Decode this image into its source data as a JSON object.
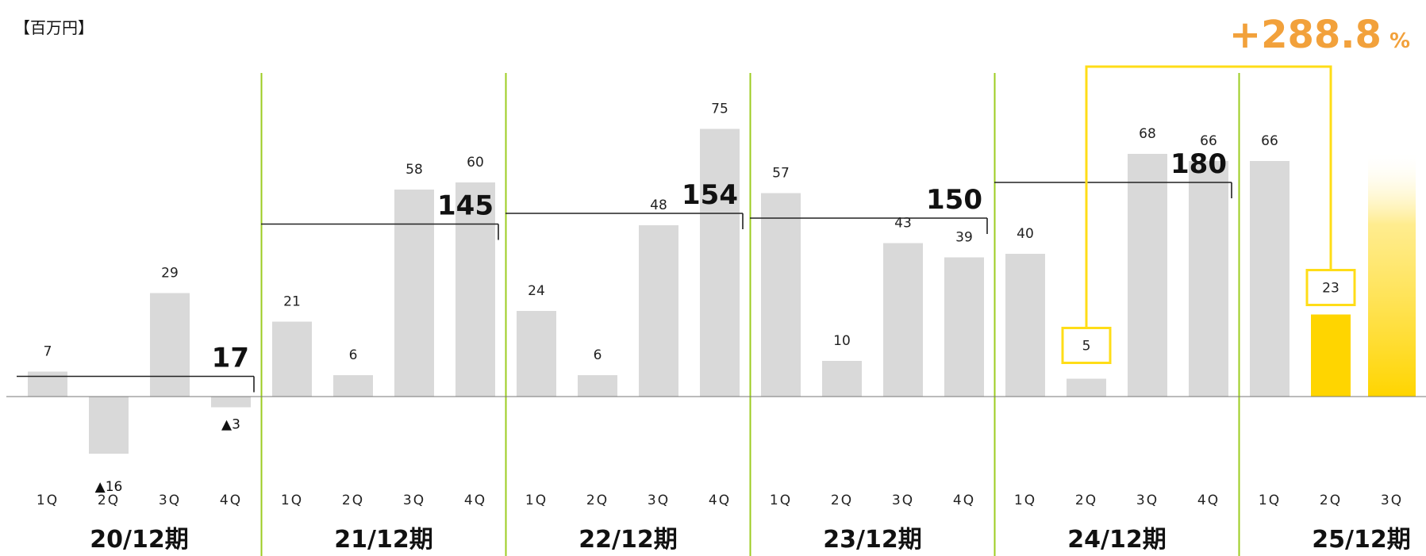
{
  "unit_label": "【百万円】",
  "chart_data": {
    "type": "bar",
    "unit": "百万円",
    "periods": [
      {
        "label": "20/12期",
        "annual_total": "17",
        "quarters": [
          {
            "q": "1Q",
            "value": 7,
            "label": "7"
          },
          {
            "q": "2Q",
            "value": -16,
            "label": "▲16"
          },
          {
            "q": "3Q",
            "value": 29,
            "label": "29"
          },
          {
            "q": "4Q",
            "value": -3,
            "label": "▲3"
          }
        ]
      },
      {
        "label": "21/12期",
        "annual_total": "145",
        "quarters": [
          {
            "q": "1Q",
            "value": 21,
            "label": "21"
          },
          {
            "q": "2Q",
            "value": 6,
            "label": "6"
          },
          {
            "q": "3Q",
            "value": 58,
            "label": "58"
          },
          {
            "q": "4Q",
            "value": 60,
            "label": "60"
          }
        ]
      },
      {
        "label": "22/12期",
        "annual_total": "154",
        "quarters": [
          {
            "q": "1Q",
            "value": 24,
            "label": "24"
          },
          {
            "q": "2Q",
            "value": 6,
            "label": "6"
          },
          {
            "q": "3Q",
            "value": 48,
            "label": "48"
          },
          {
            "q": "4Q",
            "value": 75,
            "label": "75"
          }
        ]
      },
      {
        "label": "23/12期",
        "annual_total": "150",
        "quarters": [
          {
            "q": "1Q",
            "value": 57,
            "label": "57"
          },
          {
            "q": "2Q",
            "value": 10,
            "label": "10"
          },
          {
            "q": "3Q",
            "value": 43,
            "label": "43"
          },
          {
            "q": "4Q",
            "value": 39,
            "label": "39"
          }
        ]
      },
      {
        "label": "24/12期",
        "annual_total": "180",
        "quarters": [
          {
            "q": "1Q",
            "value": 40,
            "label": "40"
          },
          {
            "q": "2Q",
            "value": 5,
            "label": "5"
          },
          {
            "q": "3Q",
            "value": 68,
            "label": "68"
          },
          {
            "q": "4Q",
            "value": 66,
            "label": "66"
          }
        ]
      },
      {
        "label": "25/12期",
        "annual_total": null,
        "quarters": [
          {
            "q": "1Q",
            "value": 66,
            "label": "66"
          },
          {
            "q": "2Q",
            "value": 23,
            "label": "23"
          },
          {
            "q": "3Q",
            "value": null,
            "label": null
          }
        ]
      }
    ],
    "growth": {
      "text": "+288.8",
      "unit": "%",
      "from": "24/12期 2Q",
      "to": "25/12期 2Q"
    },
    "colors": {
      "bar": "#d9d9d9",
      "highlight": "#ffd500",
      "highlight_box": "#ffdd17",
      "separator": "#9ccc20",
      "growth_text": "#f2a13b",
      "baseline": "#777777"
    }
  }
}
